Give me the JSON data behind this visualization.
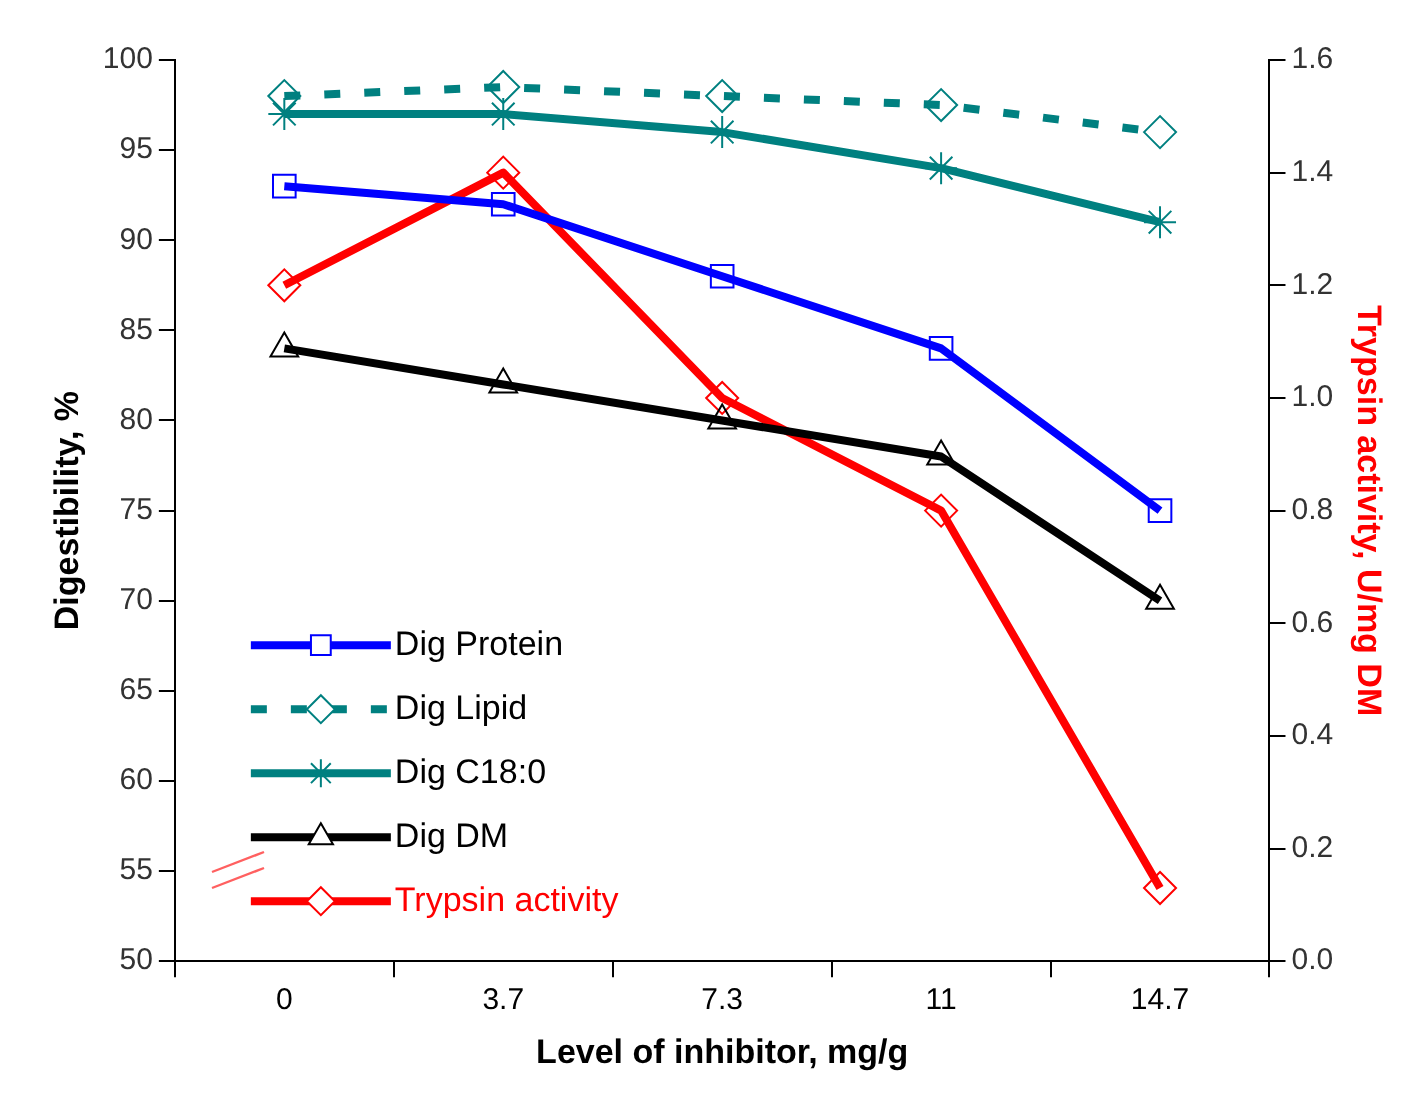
{
  "chart_data": {
    "type": "line",
    "xlabel": "Level of inhibitor, mg/g",
    "ylabel": "Digestibility, %",
    "y2label": "Trypsin activity, U/mg DM",
    "categories": [
      "0",
      "3.7",
      "7.3",
      "11",
      "14.7"
    ],
    "ylim": [
      50,
      100
    ],
    "yticks": [
      50,
      55,
      60,
      65,
      70,
      75,
      80,
      85,
      90,
      95,
      100
    ],
    "y2lim": [
      0,
      1.6
    ],
    "y2ticks": [
      {
        "value": 0,
        "label": "0.0"
      },
      {
        "value": 0.2,
        "label": "0.2"
      },
      {
        "value": 0.4,
        "label": "0.4"
      },
      {
        "value": 0.6,
        "label": "0.6"
      },
      {
        "value": 0.8,
        "label": "0.8"
      },
      {
        "value": 1.0,
        "label": "1.0"
      },
      {
        "value": 1.2,
        "label": "1.2"
      },
      {
        "value": 1.4,
        "label": "1.4"
      },
      {
        "value": 1.6,
        "label": "1.6"
      }
    ],
    "grid": false,
    "legend": "bottom left",
    "series": [
      {
        "name": "Dig Protein",
        "color": "#0000ff",
        "marker": "square",
        "line_style": "solid",
        "values": [
          93,
          92,
          88,
          84,
          75
        ]
      },
      {
        "name": "Dig Lipid",
        "color": "#008080",
        "marker": "diamond",
        "line_style": "dashed",
        "values": [
          98,
          98.5,
          98,
          97.5,
          96
        ]
      },
      {
        "name": "Dig C18:0",
        "color": "#008080",
        "marker": "cross",
        "line_style": "solid",
        "values": [
          97,
          97,
          96,
          94,
          91
        ]
      },
      {
        "name": "Dig DM",
        "color": "#000000",
        "marker": "triangle",
        "line_style": "solid",
        "values": [
          84,
          82,
          80,
          78,
          70
        ]
      },
      {
        "name": "Trypsin activity",
        "color": "#ff0000",
        "marker": "diamond",
        "line_style": "solid",
        "axis": "y2",
        "values": [
          1.2,
          1.4,
          1.0,
          0.8,
          0.13
        ]
      }
    ]
  }
}
